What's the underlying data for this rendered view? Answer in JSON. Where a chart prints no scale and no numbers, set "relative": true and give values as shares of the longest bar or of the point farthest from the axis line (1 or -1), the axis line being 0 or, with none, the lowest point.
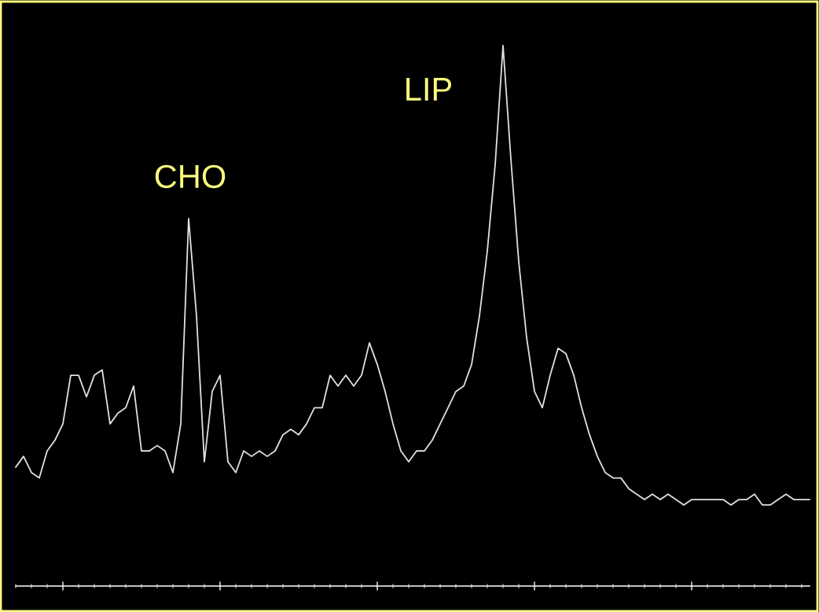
{
  "chart_data": {
    "type": "line",
    "relative": true,
    "tick_labels": false,
    "grid": false,
    "legend": false,
    "annotations": [
      "CHO",
      "LIP"
    ],
    "categories": [
      null,
      null,
      null,
      null,
      null,
      null,
      null,
      null,
      null,
      null,
      null,
      null,
      null,
      null,
      null,
      null,
      null,
      null,
      null,
      null,
      null,
      null,
      null,
      null,
      null,
      null,
      null,
      null,
      null,
      null,
      null,
      null,
      null,
      null,
      null,
      null,
      null,
      null,
      null,
      null,
      null,
      null,
      null,
      null,
      null,
      null,
      null,
      null,
      null,
      null,
      null,
      null,
      null,
      null,
      null,
      null,
      null,
      null,
      null,
      null,
      null,
      null,
      null,
      null,
      null,
      null,
      null,
      null,
      null,
      null,
      null,
      null,
      null,
      null,
      null,
      null,
      null,
      null,
      null,
      null,
      null,
      null,
      null,
      null,
      null,
      null,
      null,
      null,
      null,
      null,
      null,
      null,
      null,
      null,
      null,
      null,
      null,
      null,
      null,
      null,
      null,
      null
    ],
    "series": [
      {
        "color": "#e0e0e0",
        "values": [
          0.22,
          0.24,
          0.21,
          0.2,
          0.25,
          0.27,
          0.3,
          0.39,
          0.39,
          0.35,
          0.39,
          0.4,
          0.3,
          0.32,
          0.33,
          0.37,
          0.25,
          0.25,
          0.26,
          0.25,
          0.21,
          0.3,
          0.68,
          0.5,
          0.23,
          0.36,
          0.39,
          0.23,
          0.21,
          0.25,
          0.24,
          0.25,
          0.24,
          0.25,
          0.28,
          0.29,
          0.28,
          0.3,
          0.33,
          0.33,
          0.39,
          0.37,
          0.39,
          0.37,
          0.39,
          0.45,
          0.41,
          0.36,
          0.3,
          0.25,
          0.23,
          0.25,
          0.25,
          0.27,
          0.3,
          0.33,
          0.36,
          0.37,
          0.41,
          0.5,
          0.62,
          0.78,
          1,
          0.79,
          0.6,
          0.46,
          0.36,
          0.33,
          0.39,
          0.44,
          0.43,
          0.39,
          0.33,
          0.28,
          0.24,
          0.21,
          0.2,
          0.2,
          0.18,
          0.17,
          0.16,
          0.17,
          0.16,
          0.17,
          0.16,
          0.15,
          0.16,
          0.16,
          0.16,
          0.16,
          0.16,
          0.15,
          0.16,
          0.16,
          0.17,
          0.15,
          0.15,
          0.16,
          0.17,
          0.16,
          0.16,
          0.16
        ]
      }
    ]
  }
}
